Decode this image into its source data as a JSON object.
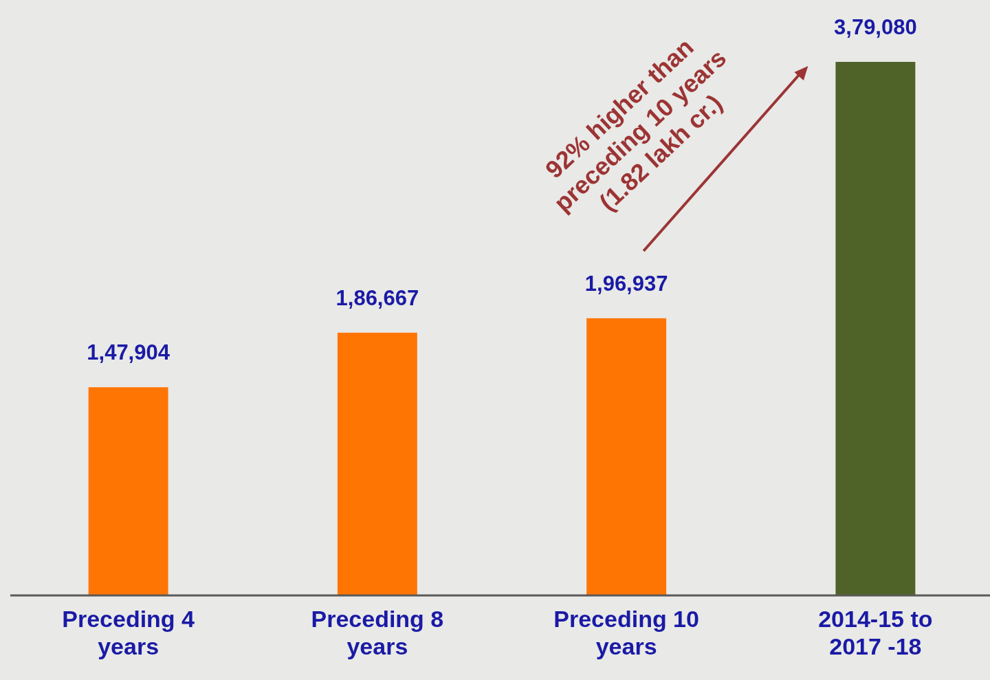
{
  "chart_data": {
    "type": "bar",
    "categories": [
      "Preceding 4 years",
      "Preceding 8 years",
      "Preceding 10 years",
      "2014-15 to 2017 -18"
    ],
    "values": [
      147904,
      186667,
      196937,
      379080
    ],
    "colors": [
      "#ff7504",
      "#ff7504",
      "#ff7504",
      "#4f6228"
    ],
    "data_labels": true,
    "value_labels": [
      "1,47,904",
      "1,86,667",
      "1,96,937",
      "3,79,080"
    ],
    "annotations": [
      "92% higher than\npreceding 10 years\n(1.82 lakh cr.)"
    ]
  }
}
